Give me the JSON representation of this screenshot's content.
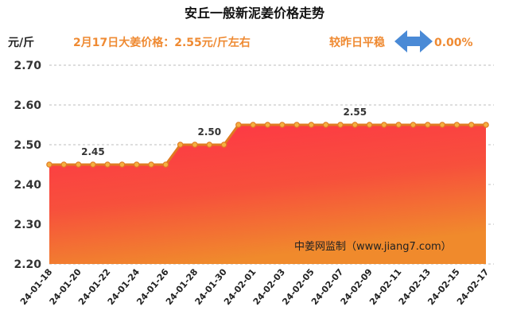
{
  "header": {
    "title": "安丘一般新泥姜价格走势",
    "unit": "元/斤",
    "price_note": "2月17日大姜价格：2.55元/斤左右",
    "compare_label": "较昨日平稳",
    "compare_value": "0.00%",
    "compare_icon": "left-right-arrow-icon",
    "accent_color": "#ef8a32",
    "arrow_color": "#4a8ad6"
  },
  "watermark": "中姜网监制（www.jiang7.com）",
  "chart_data": {
    "type": "area",
    "title": "安丘一般新泥姜价格走势",
    "ylabel": "元/斤",
    "ylim": [
      2.2,
      2.7
    ],
    "yticks": [
      "2.20",
      "2.30",
      "2.40",
      "2.50",
      "2.60",
      "2.70"
    ],
    "grid": true,
    "x": [
      "2024-01-18",
      "2024-01-19",
      "2024-01-20",
      "2024-01-21",
      "2024-01-22",
      "2024-01-23",
      "2024-01-24",
      "2024-01-25",
      "2024-01-26",
      "2024-01-27",
      "2024-01-28",
      "2024-01-29",
      "2024-01-30",
      "2024-01-31",
      "2024-02-01",
      "2024-02-02",
      "2024-02-03",
      "2024-02-04",
      "2024-02-05",
      "2024-02-06",
      "2024-02-07",
      "2024-02-08",
      "2024-02-09",
      "2024-02-10",
      "2024-02-11",
      "2024-02-12",
      "2024-02-13",
      "2024-02-14",
      "2024-02-15",
      "2024-02-16",
      "2024-02-17"
    ],
    "xtick_labels": [
      "24-01-18",
      "24-01-20",
      "24-01-22",
      "24-01-24",
      "24-01-26",
      "24-01-28",
      "24-01-30",
      "24-02-01",
      "24-02-03",
      "24-02-05",
      "24-02-07",
      "24-02-09",
      "24-02-11",
      "24-02-13",
      "24-02-15",
      "24-02-17"
    ],
    "values": [
      2.45,
      2.45,
      2.45,
      2.45,
      2.45,
      2.45,
      2.45,
      2.45,
      2.45,
      2.5,
      2.5,
      2.5,
      2.5,
      2.55,
      2.55,
      2.55,
      2.55,
      2.55,
      2.55,
      2.55,
      2.55,
      2.55,
      2.55,
      2.55,
      2.55,
      2.55,
      2.55,
      2.55,
      2.55,
      2.55,
      2.55
    ],
    "data_labels": [
      {
        "index": 3,
        "text": "2.45"
      },
      {
        "index": 11,
        "text": "2.50"
      },
      {
        "index": 21,
        "text": "2.55"
      }
    ],
    "colors": {
      "line": "#e07a22",
      "marker_fill": "#f5b041",
      "area_top": "#ff3347",
      "area_bottom": "#f08a2c"
    }
  }
}
